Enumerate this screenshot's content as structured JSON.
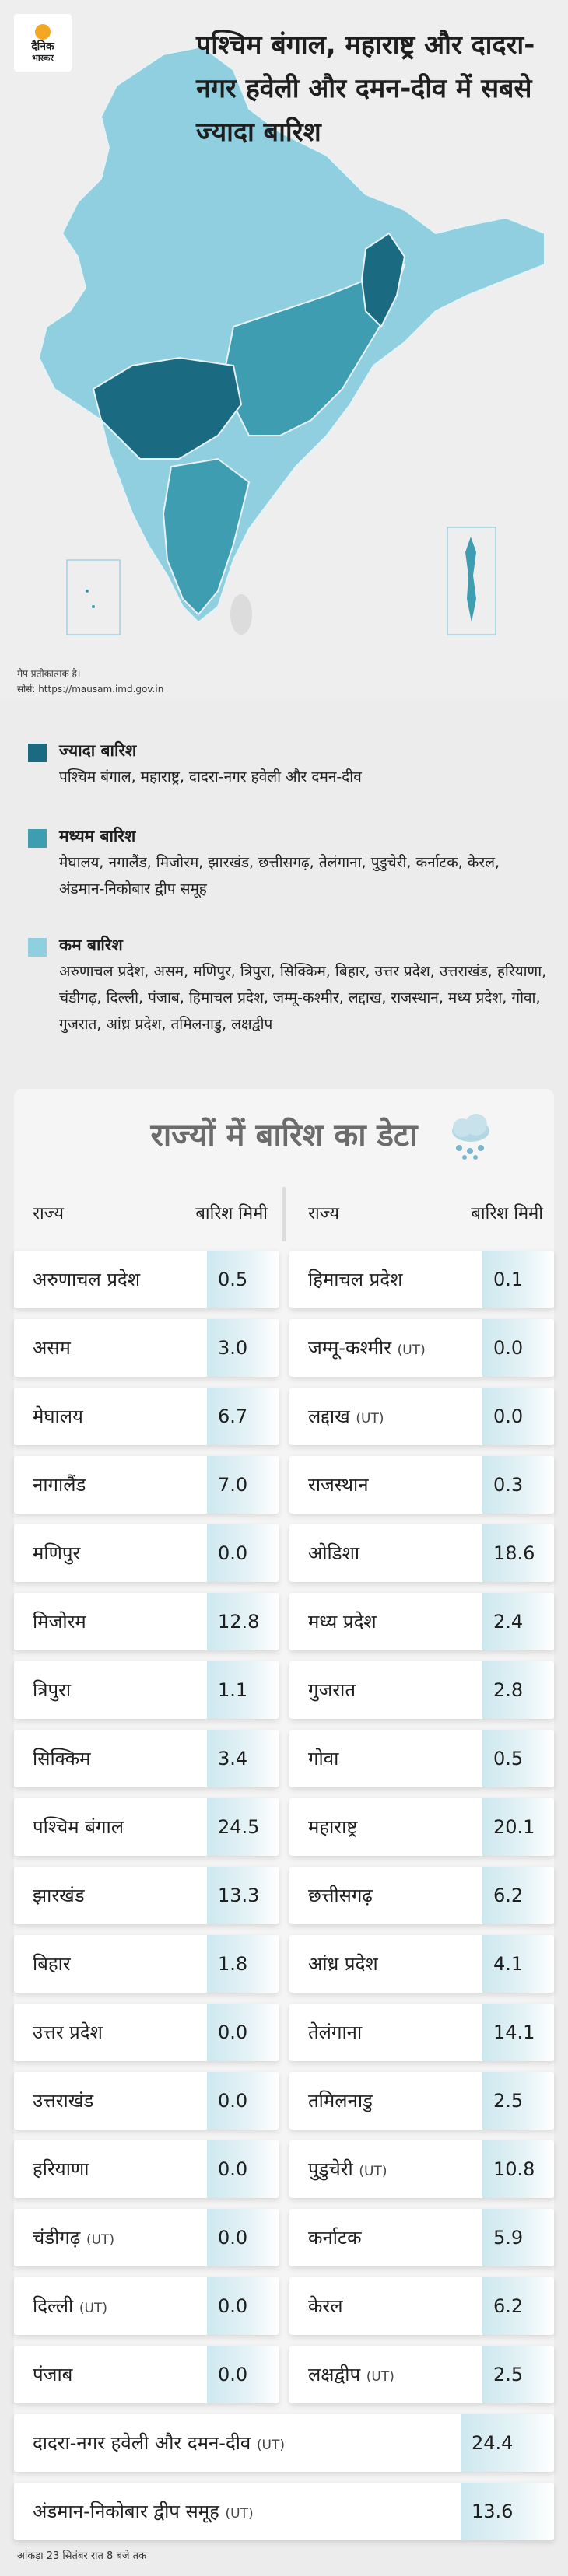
{
  "logo": {
    "line1": "दैनिक",
    "line2": "भास्कर"
  },
  "headline": "पश्चिम बंगाल, महाराष्ट्र और दादरा-नगर हवेली और दमन-दीव  में सबसे ज्यादा बारिश",
  "map_note": {
    "symbolic": "मैप प्रतीकात्मक है।",
    "source": "सोर्स: https://mausam.imd.gov.in"
  },
  "colors": {
    "high": "#1a6b82",
    "medium": "#3f9db2",
    "low": "#8fcfe0",
    "page_bg": "#ececec"
  },
  "legend": [
    {
      "title": "ज्यादा बारिश",
      "states": "पश्चिम बंगाल, महाराष्ट्र, दादरा-नगर हवेली और दमन-दीव"
    },
    {
      "title": "मध्यम बारिश",
      "states": "मेघालय, नगालैंड, मिजोरम, झारखंड, छत्तीसगढ़, तेलंगाना, पुडुचेरी, कर्नाटक, केरल, अंडमान-निकोबार द्वीप समूह"
    },
    {
      "title": "कम बारिश",
      "states": "अरुणाचल प्रदेश, असम, मणिपुर, त्रिपुरा, सिक्किम, बिहार, उत्तर प्रदेश, उत्तराखंड, हरियाणा, चंडीगढ़, दिल्ली, पंजाब, हिमाचल प्रदेश, जम्मू-कश्मीर, लद्दाख, राजस्थान, मध्य प्रदेश, गोवा, गुजरात, आंध्र प्रदेश, तमिलनाडु, लक्षद्वीप"
    }
  ],
  "table": {
    "title": "राज्यों में बारिश का डेटा",
    "col_state": "राज्य",
    "col_rain": "बारिश मिमी",
    "left": [
      {
        "state": "अरुणाचल प्रदेश",
        "ut": "",
        "value": "0.5"
      },
      {
        "state": "असम",
        "ut": "",
        "value": "3.0"
      },
      {
        "state": "मेघालय",
        "ut": "",
        "value": "6.7"
      },
      {
        "state": "नागालैंड",
        "ut": "",
        "value": "7.0"
      },
      {
        "state": "मणिपुर",
        "ut": "",
        "value": "0.0"
      },
      {
        "state": "मिजोरम",
        "ut": "",
        "value": "12.8"
      },
      {
        "state": "त्रिपुरा",
        "ut": "",
        "value": "1.1"
      },
      {
        "state": "सिक्किम",
        "ut": "",
        "value": "3.4"
      },
      {
        "state": "पश्चिम बंगाल",
        "ut": "",
        "value": "24.5"
      },
      {
        "state": "झारखंड",
        "ut": "",
        "value": "13.3"
      },
      {
        "state": "बिहार",
        "ut": "",
        "value": "1.8"
      },
      {
        "state": "उत्तर प्रदेश",
        "ut": "",
        "value": "0.0"
      },
      {
        "state": "उत्तराखंड",
        "ut": "",
        "value": "0.0"
      },
      {
        "state": "हरियाणा",
        "ut": "",
        "value": "0.0"
      },
      {
        "state": "चंडीगढ़",
        "ut": "(UT)",
        "value": "0.0"
      },
      {
        "state": "दिल्ली",
        "ut": "(UT)",
        "value": "0.0"
      },
      {
        "state": "पंजाब",
        "ut": "",
        "value": "0.0"
      }
    ],
    "right": [
      {
        "state": "हिमाचल प्रदेश",
        "ut": "",
        "value": "0.1"
      },
      {
        "state": "जम्मू-कश्मीर",
        "ut": "(UT)",
        "value": "0.0"
      },
      {
        "state": "लद्दाख",
        "ut": "(UT)",
        "value": "0.0"
      },
      {
        "state": "राजस्थान",
        "ut": "",
        "value": "0.3"
      },
      {
        "state": "ओडिशा",
        "ut": "",
        "value": "18.6"
      },
      {
        "state": "मध्य प्रदेश",
        "ut": "",
        "value": "2.4"
      },
      {
        "state": "गुजरात",
        "ut": "",
        "value": "2.8"
      },
      {
        "state": "गोवा",
        "ut": "",
        "value": "0.5"
      },
      {
        "state": "महाराष्ट्र",
        "ut": "",
        "value": "20.1"
      },
      {
        "state": "छत्तीसगढ़",
        "ut": "",
        "value": "6.2"
      },
      {
        "state": "आंध्र प्रदेश",
        "ut": "",
        "value": "4.1"
      },
      {
        "state": "तेलंगाना",
        "ut": "",
        "value": "14.1"
      },
      {
        "state": "तमिलनाडु",
        "ut": "",
        "value": "2.5"
      },
      {
        "state": "पुडुचेरी",
        "ut": "(UT)",
        "value": "10.8"
      },
      {
        "state": "कर्नाटक",
        "ut": "",
        "value": "5.9"
      },
      {
        "state": "केरल",
        "ut": "",
        "value": "6.2"
      },
      {
        "state": "लक्षद्वीप",
        "ut": "(UT)",
        "value": "2.5"
      }
    ],
    "full": [
      {
        "state": "दादरा-नगर हवेली और दमन-दीव",
        "ut": "(UT)",
        "value": "24.4"
      },
      {
        "state": "अंडमान-निकोबार द्वीप समूह",
        "ut": "(UT)",
        "value": "13.6"
      }
    ]
  },
  "footer_note": "आंकड़ा 23 सितंबर रात 8 बजे तक"
}
